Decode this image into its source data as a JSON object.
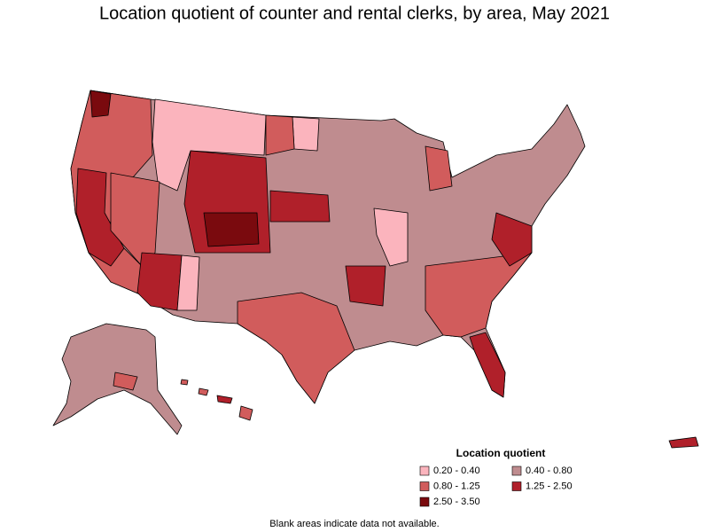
{
  "title": "Location quotient of counter and rental clerks, by area, May 2021",
  "legend": {
    "title": "Location quotient",
    "items": [
      {
        "label": "0.20 - 0.40",
        "color": "#fbb4bd"
      },
      {
        "label": "0.40 - 0.80",
        "color": "#bf8c8f"
      },
      {
        "label": "0.80 - 1.25",
        "color": "#d15c5c"
      },
      {
        "label": "1.25 - 2.50",
        "color": "#b0202a"
      },
      {
        "label": "2.50 - 3.50",
        "color": "#7a0a0e"
      }
    ]
  },
  "footnote": "Blank areas indicate data not available."
}
